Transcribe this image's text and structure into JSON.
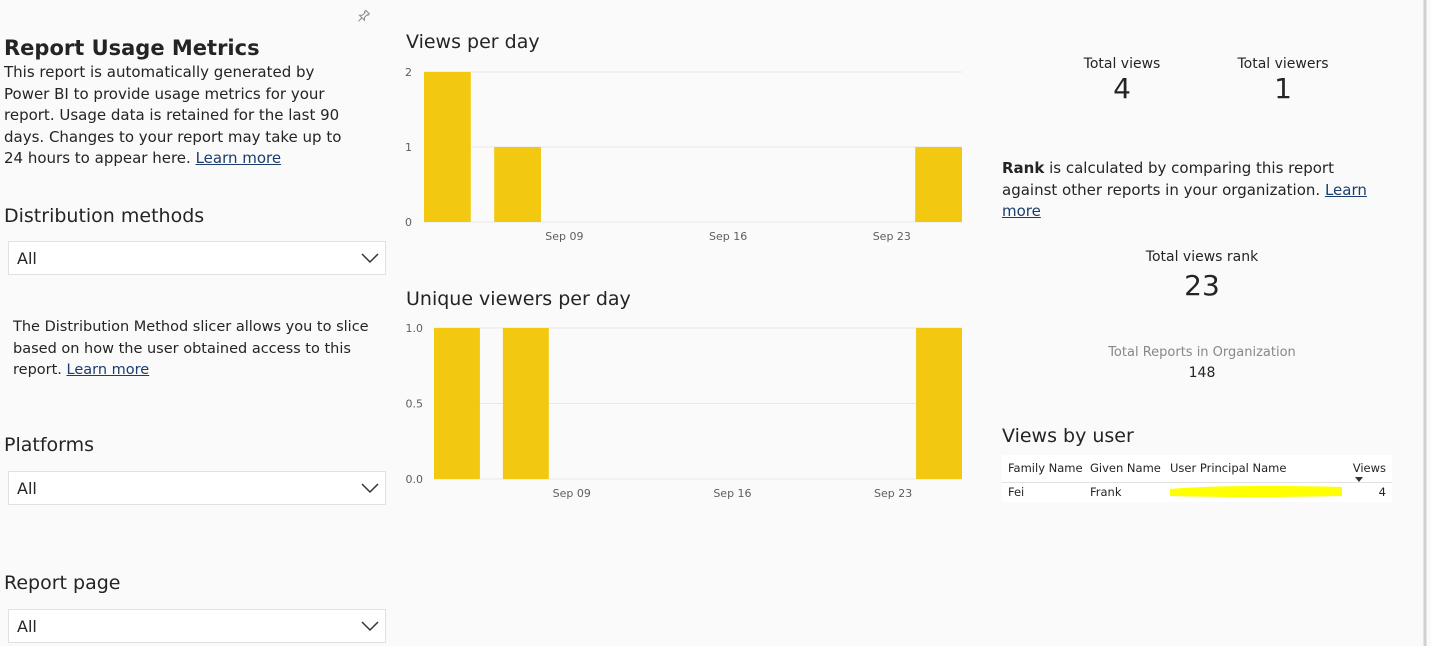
{
  "sidebar": {
    "title": "Report Usage Metrics",
    "intro": "This report is automatically generated by Power BI to provide usage metrics for your report. Usage data is retained for the last 90 days. Changes to your report may take up to 24 hours to appear here.",
    "intro_link": "Learn more",
    "slicers": [
      {
        "label": "Distribution methods",
        "value": "All",
        "note": "The Distribution Method slicer allows you to slice based on how the user obtained access to this report.",
        "note_link": "Learn more"
      },
      {
        "label": "Platforms",
        "value": "All"
      },
      {
        "label": "Report page",
        "value": "All"
      }
    ]
  },
  "chart_data": [
    {
      "type": "bar",
      "title": "Views per day",
      "x": [
        "Sep 04",
        "Sep 07",
        "Sep 25"
      ],
      "values": [
        2,
        1,
        1
      ],
      "color": "#f2c811",
      "xlim": [
        "Sep 03",
        "Sep 26"
      ],
      "xticks": [
        "Sep 09",
        "Sep 16",
        "Sep 23"
      ],
      "ylim": [
        0,
        2
      ],
      "yticks": [
        0,
        1,
        2
      ],
      "grid": true
    },
    {
      "type": "bar",
      "title": "Unique viewers per day",
      "x": [
        "Sep 04",
        "Sep 07",
        "Sep 25"
      ],
      "values": [
        1,
        1,
        1
      ],
      "color": "#f2c811",
      "xlim": [
        "Sep 03",
        "Sep 26"
      ],
      "xticks": [
        "Sep 09",
        "Sep 16",
        "Sep 23"
      ],
      "ylim": [
        0,
        1
      ],
      "yticks": [
        {
          "value": 0,
          "label": "0.0"
        },
        {
          "value": 0.5,
          "label": "0.5"
        },
        {
          "value": 1,
          "label": "1.0"
        }
      ],
      "grid": true
    }
  ],
  "cards": {
    "total_views": {
      "label": "Total views",
      "value": 4
    },
    "total_viewers": {
      "label": "Total viewers",
      "value": 1
    },
    "rank_note_bold": "Rank",
    "rank_note": "is calculated by comparing this report against other reports in your organization.",
    "rank_link": "Learn more",
    "rank": {
      "label": "Total views rank",
      "value": 23
    },
    "total_reports": {
      "label": "Total Reports in Organization",
      "value": 148
    }
  },
  "table": {
    "title": "Views by user",
    "columns": [
      "Family Name",
      "Given Name",
      "User Principal Name",
      "Views"
    ],
    "rows": [
      {
        "family": "Fei",
        "given": "Frank",
        "views": 4
      }
    ]
  }
}
